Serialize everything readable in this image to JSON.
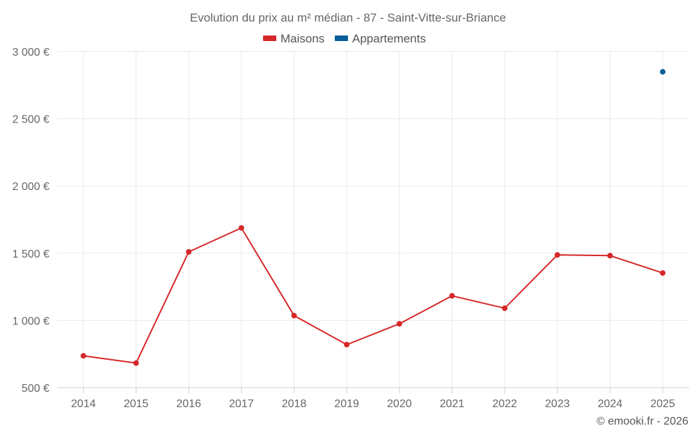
{
  "chart_data": {
    "type": "line",
    "title": "Evolution du prix au m² médian - 87 - Saint-Vitte-sur-Briance",
    "categories": [
      "2014",
      "2015",
      "2016",
      "2017",
      "2018",
      "2019",
      "2020",
      "2021",
      "2022",
      "2023",
      "2024",
      "2025"
    ],
    "series": [
      {
        "name": "Maisons",
        "color": "#d62728",
        "values": [
          737,
          683,
          1510,
          1688,
          1036,
          820,
          975,
          1183,
          1091,
          1487,
          1482,
          1353
        ]
      },
      {
        "name": "Appartements",
        "color": "#0a5f9b",
        "values": [
          null,
          null,
          null,
          null,
          null,
          null,
          null,
          null,
          null,
          null,
          null,
          2849
        ]
      }
    ],
    "ylim": [
      500,
      3000
    ],
    "yticks": [
      500,
      1000,
      1500,
      2000,
      2500,
      3000
    ],
    "ytick_labels": [
      "500 €",
      "1 000 €",
      "1 500 €",
      "2 000 €",
      "2 500 €",
      "3 000 €"
    ],
    "xlabel": "",
    "ylabel": "",
    "legend_position": "top-center",
    "grid": true
  },
  "credit": "© emooki.fr - 2026"
}
